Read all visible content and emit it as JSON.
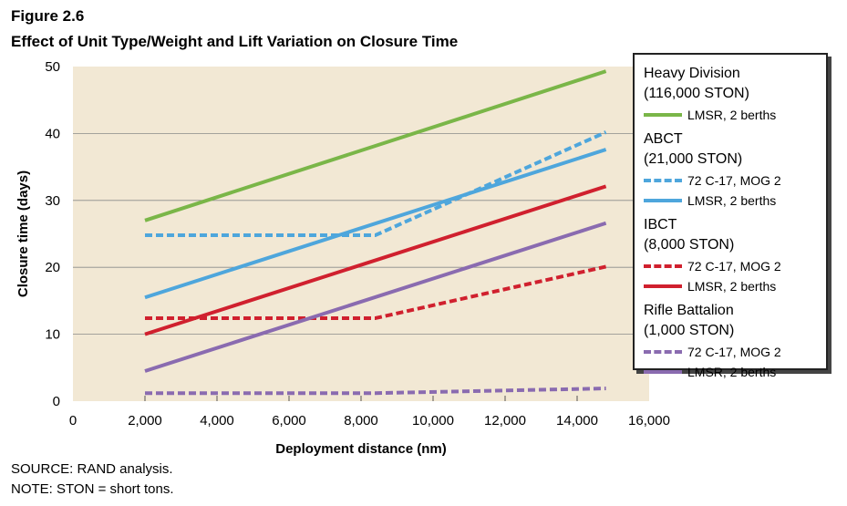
{
  "figure": {
    "number": "Figure 2.6",
    "title": "Effect of Unit Type/Weight and Lift Variation on Closure Time"
  },
  "notes": {
    "source": "SOURCE: RAND analysis.",
    "note": "NOTE: STON = short tons."
  },
  "legend": {
    "groups": [
      {
        "title": "Heavy Division",
        "sub": "(116,000 STON)",
        "entries": [
          {
            "label": "LMSR, 2 berths",
            "color": "#7ab648",
            "dash": false
          }
        ]
      },
      {
        "title": "ABCT",
        "sub": "(21,000 STON)",
        "entries": [
          {
            "label": "72 C-17, MOG 2",
            "color": "#4ea6dc",
            "dash": true
          },
          {
            "label": "LMSR, 2 berths",
            "color": "#4ea6dc",
            "dash": false
          }
        ]
      },
      {
        "title": "IBCT",
        "sub": "(8,000 STON)",
        "entries": [
          {
            "label": "72 C-17, MOG 2",
            "color": "#d0202e",
            "dash": true
          },
          {
            "label": "LMSR, 2 berths",
            "color": "#d0202e",
            "dash": false
          }
        ]
      },
      {
        "title": "Rifle Battalion",
        "sub": "(1,000 STON)",
        "entries": [
          {
            "label": "72 C-17, MOG 2",
            "color": "#8a6bb0",
            "dash": true
          },
          {
            "label": "LMSR, 2 berths",
            "color": "#8a6bb0",
            "dash": false
          }
        ]
      }
    ]
  },
  "chart_data": {
    "type": "line",
    "xlabel": "Deployment distance (nm)",
    "ylabel": "Closure time (days)",
    "xlim": [
      0,
      16000
    ],
    "ylim": [
      0,
      50
    ],
    "xticks": [
      0,
      2000,
      4000,
      6000,
      8000,
      10000,
      12000,
      14000,
      16000
    ],
    "xtick_labels": [
      "0",
      "2,000",
      "4,000",
      "6,000",
      "8,000",
      "10,000",
      "12,000",
      "14,000",
      "16,000"
    ],
    "yticks": [
      0,
      10,
      20,
      30,
      40,
      50
    ],
    "ytick_labels": [
      "0",
      "10",
      "20",
      "30",
      "40",
      "50"
    ],
    "grid": "horizontal",
    "background": "#f2e8d4",
    "legend_position": "right",
    "series": [
      {
        "name": "Heavy Division (116,000 STON) LMSR, 2 berths",
        "color": "#7ab648",
        "dash": false,
        "x": [
          2000,
          14800
        ],
        "y": [
          27,
          49.3
        ]
      },
      {
        "name": "ABCT (21,000 STON) 72 C-17, MOG 2",
        "color": "#4ea6dc",
        "dash": true,
        "x": [
          2000,
          8400,
          14800
        ],
        "y": [
          24.8,
          24.8,
          40.2
        ]
      },
      {
        "name": "ABCT (21,000 STON) LMSR, 2 berths",
        "color": "#4ea6dc",
        "dash": false,
        "x": [
          2000,
          14800
        ],
        "y": [
          15.5,
          37.6
        ]
      },
      {
        "name": "IBCT (8,000 STON) 72 C-17, MOG 2",
        "color": "#d0202e",
        "dash": true,
        "x": [
          2000,
          8400,
          14800
        ],
        "y": [
          12.4,
          12.4,
          20.1
        ]
      },
      {
        "name": "IBCT (8,000 STON) LMSR, 2 berths",
        "color": "#d0202e",
        "dash": false,
        "x": [
          2000,
          14800
        ],
        "y": [
          10,
          32.1
        ]
      },
      {
        "name": "Rifle Battalion (1,000 STON) 72 C-17, MOG 2",
        "color": "#8a6bb0",
        "dash": true,
        "x": [
          2000,
          8400,
          14800
        ],
        "y": [
          1.2,
          1.2,
          1.9
        ]
      },
      {
        "name": "Rifle Battalion (1,000 STON) LMSR, 2 berths",
        "color": "#8a6bb0",
        "dash": false,
        "x": [
          2000,
          14800
        ],
        "y": [
          4.5,
          26.6
        ]
      }
    ]
  }
}
